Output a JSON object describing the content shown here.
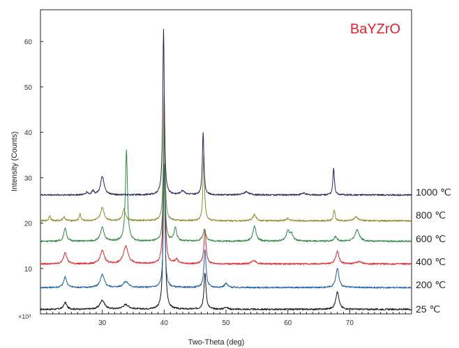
{
  "chart_data": {
    "type": "line",
    "title": "BaYZrO",
    "title_color": "#e8202a",
    "xlabel": "Two-Theta (deg)",
    "ylabel": "Intensity (Counts)",
    "y_multiplier_label": "×10³",
    "xlim": [
      20,
      80
    ],
    "ylim": [
      0,
      67
    ],
    "x_ticks": [
      30,
      40,
      50,
      60,
      70
    ],
    "y_ticks": [
      10,
      20,
      30,
      40,
      50,
      60
    ],
    "grid": false,
    "legend": "right-side labels",
    "series": [
      {
        "name": "25 ℃",
        "color": "#111111",
        "baseline": 1.0,
        "peaks": [
          [
            24.0,
            1.5,
            0.3
          ],
          [
            30.0,
            2.0,
            0.45
          ],
          [
            33.8,
            1.0,
            0.6
          ],
          [
            40.0,
            45.0,
            0.15
          ],
          [
            46.6,
            8.0,
            0.2
          ],
          [
            50.0,
            0.5,
            0.3
          ],
          [
            68.0,
            4.0,
            0.3
          ]
        ]
      },
      {
        "name": "200 ℃",
        "color": "#1c5fa8",
        "baseline": 5.8,
        "peaks": [
          [
            24.0,
            2.3,
            0.3
          ],
          [
            30.0,
            2.8,
            0.4
          ],
          [
            33.8,
            1.3,
            0.5
          ],
          [
            40.0,
            27.0,
            0.15
          ],
          [
            46.6,
            8.5,
            0.2
          ],
          [
            50.0,
            0.9,
            0.3
          ],
          [
            68.0,
            4.2,
            0.3
          ]
        ]
      },
      {
        "name": "400 ℃",
        "color": "#e32428",
        "baseline": 11.0,
        "peaks": [
          [
            24.0,
            2.6,
            0.3
          ],
          [
            30.0,
            2.9,
            0.4
          ],
          [
            33.8,
            4.0,
            0.45
          ],
          [
            40.0,
            36.5,
            0.15
          ],
          [
            42.0,
            1.0,
            0.3
          ],
          [
            46.6,
            7.5,
            0.2
          ],
          [
            54.5,
            0.8,
            0.4
          ],
          [
            68.0,
            2.8,
            0.3
          ],
          [
            71.5,
            0.5,
            0.5
          ]
        ]
      },
      {
        "name": "600 ℃",
        "color": "#2a8a3e",
        "baseline": 16.0,
        "peaks": [
          [
            24.0,
            3.0,
            0.25
          ],
          [
            30.0,
            3.0,
            0.35
          ],
          [
            33.9,
            20.0,
            0.2
          ],
          [
            40.0,
            26.0,
            0.15
          ],
          [
            41.8,
            3.0,
            0.25
          ],
          [
            46.5,
            2.5,
            0.3
          ],
          [
            54.6,
            3.3,
            0.3
          ],
          [
            60.0,
            2.3,
            0.3
          ],
          [
            60.6,
            1.5,
            0.3
          ],
          [
            67.7,
            1.0,
            0.3
          ],
          [
            71.2,
            2.5,
            0.4
          ]
        ]
      },
      {
        "name": "800 ℃",
        "color": "#8a8a2a",
        "baseline": 20.5,
        "peaks": [
          [
            21.5,
            1.2,
            0.15
          ],
          [
            23.8,
            0.8,
            0.25
          ],
          [
            26.4,
            1.6,
            0.15
          ],
          [
            30.0,
            2.9,
            0.35
          ],
          [
            33.5,
            2.5,
            0.3
          ],
          [
            40.0,
            28.0,
            0.15
          ],
          [
            46.4,
            14.5,
            0.15
          ],
          [
            54.6,
            1.4,
            0.3
          ],
          [
            60.0,
            0.6,
            0.3
          ],
          [
            67.5,
            2.5,
            0.15
          ],
          [
            71.0,
            0.8,
            0.4
          ]
        ]
      },
      {
        "name": "1000 ℃",
        "color": "#23235e",
        "baseline": 26.2,
        "peaks": [
          [
            27.5,
            0.6,
            0.2
          ],
          [
            28.5,
            0.9,
            0.2
          ],
          [
            30.0,
            4.0,
            0.35
          ],
          [
            39.9,
            36.5,
            0.15
          ],
          [
            43.0,
            0.9,
            0.4
          ],
          [
            46.3,
            13.8,
            0.15
          ],
          [
            53.3,
            0.7,
            0.5
          ],
          [
            62.5,
            0.4,
            0.4
          ],
          [
            67.4,
            5.9,
            0.15
          ]
        ]
      }
    ]
  }
}
